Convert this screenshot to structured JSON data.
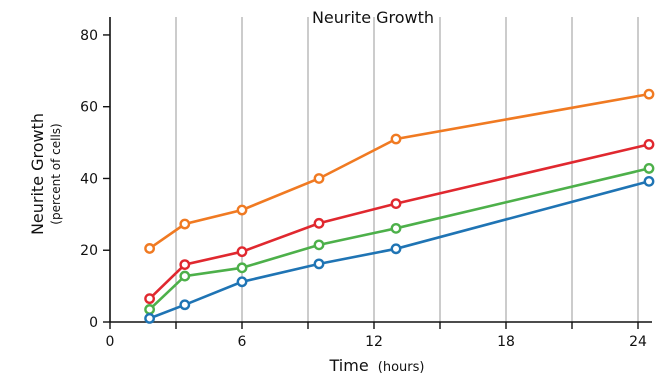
{
  "chart_data": {
    "type": "line",
    "title": "Neurite Growth",
    "xlabel": "Time",
    "xlabel_unit": "(hours)",
    "ylabel": "Neurite Growth",
    "ylabel_unit": "(percent of cells)",
    "xlim": [
      0,
      24.5
    ],
    "ylim": [
      0,
      85
    ],
    "x_major_ticks": [
      0,
      6,
      12,
      18,
      24
    ],
    "x_minor_ticks": [
      3,
      9,
      15,
      21
    ],
    "y_ticks": [
      0,
      20,
      40,
      60,
      80
    ],
    "grid": "vertical",
    "x": [
      1.8,
      3.4,
      6,
      9.5,
      13,
      24.5
    ],
    "series": [
      {
        "values": [
          20.5,
          27.3,
          31.2,
          40,
          51,
          63.5
        ],
        "color": "#f07a22"
      },
      {
        "values": [
          6.5,
          16,
          19.6,
          27.5,
          33,
          49.5
        ],
        "color": "#e0282f"
      },
      {
        "values": [
          3.5,
          12.8,
          15.1,
          21.5,
          26.1,
          42.8
        ],
        "color": "#4db04a"
      },
      {
        "values": [
          1,
          4.8,
          11.2,
          16.2,
          20.4,
          39.2
        ],
        "color": "#1f74b4"
      }
    ]
  }
}
